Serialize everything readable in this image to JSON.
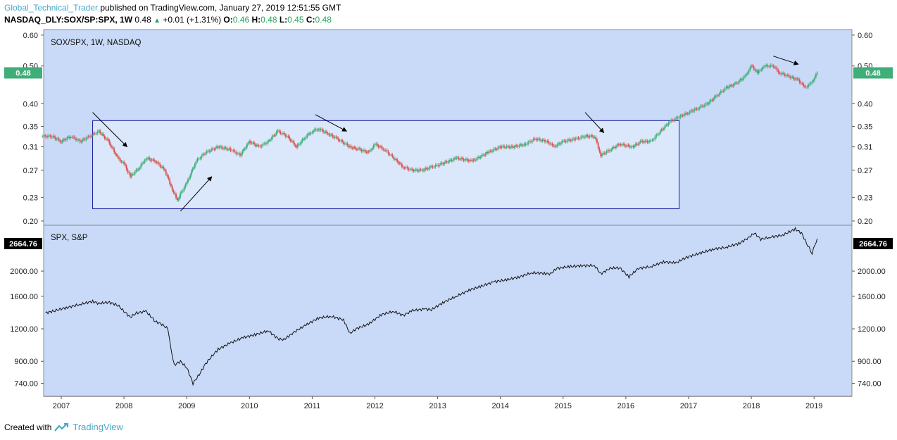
{
  "header": {
    "author": "Global_Technical_Trader",
    "published_text": "published on TradingView.com, January 27, 2019 12:51:55 GMT",
    "symbol": "NASDAQ_DLY:SOX/SP:SPX, 1W",
    "last": "0.48",
    "change": "+0.01 (+1.31%)",
    "o_label": "O:",
    "o_val": "0.46",
    "h_label": "H:",
    "h_val": "0.48",
    "l_label": "L:",
    "l_val": "0.45",
    "c_label": "C:",
    "c_val": "0.48"
  },
  "footer": {
    "created_with": "Created with",
    "brand": "TradingView"
  },
  "colors": {
    "pane_bg": "#c9daf8",
    "box_fill": "#dbe7fa",
    "up": "#3fae78",
    "down": "#d9534f",
    "badge_green": "#3fae78",
    "badge_black": "#000000",
    "box_stroke": "#1a1aa0"
  },
  "chart_data": [
    {
      "type": "candlestick",
      "title": "SOX/SPX, 1W, NASDAQ",
      "last_value_label": "0.48",
      "y_ticks": [
        "0.60",
        "0.50",
        "0.40",
        "0.35",
        "0.31",
        "0.27",
        "0.23",
        "0.20"
      ],
      "y_tick_values": [
        0.6,
        0.5,
        0.4,
        0.35,
        0.31,
        0.27,
        0.23,
        0.2
      ],
      "ylim": [
        0.195,
        0.62
      ],
      "scale": "log",
      "x_ticks": [
        "2007",
        "2008",
        "2009",
        "2010",
        "2011",
        "2012",
        "2013",
        "2014",
        "2015",
        "2016",
        "2017",
        "2018",
        "2019"
      ],
      "series": [
        {
          "x": [
            2006.7,
            2006.85,
            2007.0,
            2007.15,
            2007.3,
            2007.45,
            2007.6,
            2007.75,
            2007.9,
            2008.0,
            2008.1,
            2008.25,
            2008.35,
            2008.5,
            2008.65,
            2008.75,
            2008.85,
            2008.9,
            2009.0,
            2009.15,
            2009.3,
            2009.5,
            2009.7,
            2009.85,
            2010.0,
            2010.15,
            2010.3,
            2010.45,
            2010.6,
            2010.75,
            2010.9,
            2011.0,
            2011.1,
            2011.25,
            2011.4,
            2011.6,
            2011.75,
            2011.9,
            2012.0,
            2012.15,
            2012.3,
            2012.45,
            2012.6,
            2012.75,
            2012.9,
            2013.05,
            2013.3,
            2013.55,
            2013.8,
            2014.0,
            2014.2,
            2014.4,
            2014.55,
            2014.75,
            2014.85,
            2015.0,
            2015.2,
            2015.35,
            2015.5,
            2015.6,
            2015.75,
            2015.9,
            2016.1,
            2016.25,
            2016.4,
            2016.55,
            2016.7,
            2016.85,
            2017.0,
            2017.15,
            2017.3,
            2017.45,
            2017.6,
            2017.75,
            2017.9,
            2018.0,
            2018.1,
            2018.2,
            2018.35,
            2018.45,
            2018.6,
            2018.75,
            2018.85,
            2018.95,
            2019.05
          ],
          "close": [
            0.33,
            0.33,
            0.32,
            0.33,
            0.32,
            0.33,
            0.34,
            0.32,
            0.29,
            0.28,
            0.26,
            0.275,
            0.29,
            0.285,
            0.27,
            0.245,
            0.225,
            0.235,
            0.25,
            0.285,
            0.3,
            0.31,
            0.305,
            0.295,
            0.32,
            0.31,
            0.32,
            0.34,
            0.33,
            0.31,
            0.33,
            0.34,
            0.345,
            0.335,
            0.325,
            0.31,
            0.305,
            0.3,
            0.315,
            0.305,
            0.29,
            0.275,
            0.27,
            0.27,
            0.275,
            0.28,
            0.29,
            0.285,
            0.3,
            0.31,
            0.31,
            0.315,
            0.325,
            0.32,
            0.31,
            0.32,
            0.325,
            0.33,
            0.33,
            0.295,
            0.305,
            0.315,
            0.31,
            0.32,
            0.32,
            0.34,
            0.36,
            0.37,
            0.38,
            0.39,
            0.4,
            0.42,
            0.44,
            0.45,
            0.47,
            0.5,
            0.48,
            0.5,
            0.5,
            0.48,
            0.47,
            0.46,
            0.44,
            0.45,
            0.48
          ]
        }
      ],
      "rectangle": {
        "x_range": [
          2007.5,
          2016.85
        ],
        "y_range": [
          0.215,
          0.362
        ]
      },
      "arrows": [
        {
          "from": [
            2007.5,
            0.38
          ],
          "to": [
            2008.05,
            0.31
          ]
        },
        {
          "from": [
            2008.9,
            0.212
          ],
          "to": [
            2009.4,
            0.26
          ]
        },
        {
          "from": [
            2011.05,
            0.375
          ],
          "to": [
            2011.55,
            0.34
          ]
        },
        {
          "from": [
            2015.35,
            0.38
          ],
          "to": [
            2015.65,
            0.337
          ]
        },
        {
          "from": [
            2018.35,
            0.53
          ],
          "to": [
            2018.75,
            0.505
          ]
        }
      ]
    },
    {
      "type": "line",
      "title": "SPX, S&P",
      "last_value_label": "2664.76",
      "y_ticks": [
        "2000.00",
        "1600.00",
        "1200.00",
        "900.00",
        "740.00"
      ],
      "y_tick_values": [
        2000,
        1600,
        1200,
        900,
        740
      ],
      "ylim": [
        660,
        3000
      ],
      "scale": "log",
      "x_ticks": [
        "2007",
        "2008",
        "2009",
        "2010",
        "2011",
        "2012",
        "2013",
        "2014",
        "2015",
        "2016",
        "2017",
        "2018",
        "2019"
      ],
      "series": [
        {
          "x": [
            2006.75,
            2006.9,
            2007.1,
            2007.3,
            2007.5,
            2007.6,
            2007.75,
            2007.9,
            2008.0,
            2008.1,
            2008.2,
            2008.35,
            2008.5,
            2008.6,
            2008.7,
            2008.75,
            2008.8,
            2008.9,
            2009.0,
            2009.1,
            2009.2,
            2009.3,
            2009.5,
            2009.7,
            2009.9,
            2010.1,
            2010.3,
            2010.45,
            2010.55,
            2010.7,
            2010.9,
            2011.1,
            2011.3,
            2011.5,
            2011.6,
            2011.7,
            2011.9,
            2012.1,
            2012.3,
            2012.45,
            2012.6,
            2012.8,
            2012.9,
            2013.1,
            2013.3,
            2013.5,
            2013.7,
            2013.9,
            2014.1,
            2014.3,
            2014.5,
            2014.7,
            2014.8,
            2014.9,
            2015.1,
            2015.3,
            2015.5,
            2015.6,
            2015.75,
            2015.9,
            2016.05,
            2016.2,
            2016.4,
            2016.6,
            2016.8,
            2016.95,
            2017.2,
            2017.4,
            2017.6,
            2017.8,
            2017.95,
            2018.05,
            2018.15,
            2018.3,
            2018.5,
            2018.7,
            2018.8,
            2018.9,
            2018.97,
            2019.05
          ],
          "values": [
            1380,
            1410,
            1450,
            1490,
            1530,
            1500,
            1520,
            1480,
            1400,
            1330,
            1380,
            1400,
            1280,
            1250,
            1200,
            1000,
            870,
            900,
            850,
            740,
            800,
            880,
            1000,
            1060,
            1110,
            1140,
            1180,
            1100,
            1090,
            1160,
            1240,
            1320,
            1340,
            1300,
            1150,
            1200,
            1250,
            1360,
            1400,
            1350,
            1410,
            1430,
            1420,
            1520,
            1600,
            1690,
            1750,
            1820,
            1850,
            1900,
            1970,
            1960,
            1950,
            2050,
            2080,
            2100,
            2100,
            1950,
            2050,
            2060,
            1900,
            2050,
            2080,
            2170,
            2150,
            2250,
            2350,
            2430,
            2470,
            2550,
            2680,
            2800,
            2650,
            2700,
            2750,
            2900,
            2800,
            2500,
            2350,
            2664.76
          ]
        }
      ]
    }
  ]
}
